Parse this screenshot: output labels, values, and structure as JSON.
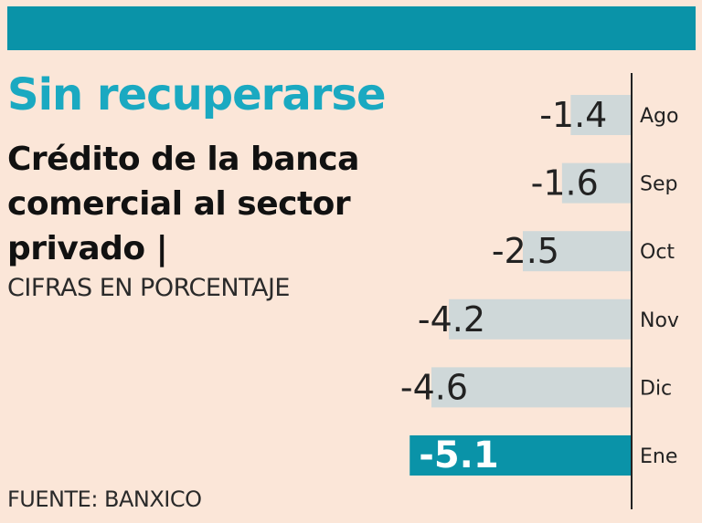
{
  "header": {
    "title": "Sin recuperarse",
    "subtitle": "Crédito de la banca comercial al sector privado |",
    "units": "CIFRAS EN PORCENTAJE",
    "source": "FUENTE: BANXICO"
  },
  "colors": {
    "background": "#fbe6d8",
    "band": "#0a93a8",
    "title": "#1aa9c1",
    "bar": "#cfd8d9",
    "highlight_bar": "#0a93a8",
    "axis": "#222222"
  },
  "chart_data": {
    "type": "bar",
    "orientation": "horizontal",
    "categories": [
      "Ago",
      "Sep",
      "Oct",
      "Nov",
      "Dic",
      "Ene"
    ],
    "values": [
      -1.4,
      -1.6,
      -2.5,
      -4.2,
      -4.6,
      -5.1
    ],
    "value_labels": [
      "-1.4",
      "-1.6",
      "-2.5",
      "-4.2",
      "-4.6",
      "-5.1"
    ],
    "highlight_index": 5,
    "xlim": [
      -5.1,
      0
    ],
    "grid": false,
    "title": "Sin recuperarse",
    "subtitle": "Crédito de la banca comercial al sector privado |"
  }
}
